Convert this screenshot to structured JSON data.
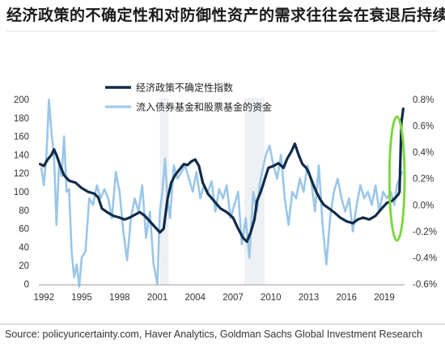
{
  "title": "经济政策的不确定性和对防御性资产的需求往往会在衰退后持续",
  "source": "Source: policyuncertainty.com, Haver Analytics, Goldman Sachs Global Investment Research",
  "colors": {
    "uncertainty_line": "#0f2b4a",
    "flows_line": "#9ac6e8",
    "highlight_ellipse": "#7fd640",
    "recession_band": "#eef0f3"
  },
  "chart_data": {
    "type": "line",
    "x_range": [
      1991.6,
      2020.6
    ],
    "x_ticks": [
      "1992",
      "1995",
      "1998",
      "2001",
      "2004",
      "2007",
      "2010",
      "2013",
      "2016",
      "2019"
    ],
    "x_tick_values": [
      1992,
      1995,
      1998,
      2001,
      2004,
      2007,
      2010,
      2013,
      2016,
      2019
    ],
    "y_left": {
      "range": [
        0,
        200
      ],
      "ticks": [
        "0",
        "20",
        "40",
        "60",
        "80",
        "100",
        "120",
        "140",
        "160",
        "180",
        "200"
      ]
    },
    "y_right": {
      "range": [
        -0.6,
        0.8
      ],
      "ticks": [
        "-0.6%",
        "-0.4%",
        "-0.2%",
        "0.0%",
        "0.2%",
        "0.4%",
        "0.6%",
        "0.8%"
      ]
    },
    "recession_periods": [
      [
        2001.2,
        2001.9
      ],
      [
        2007.9,
        2009.5
      ]
    ],
    "highlight": {
      "x": 2020.0,
      "y_center": 0.2,
      "x_half_width": 0.6,
      "y_half_height": 0.47
    },
    "series": [
      {
        "name": "经济政策不确定性指数",
        "axis": "left",
        "x": [
          1991.7,
          1992.0,
          1992.3,
          1992.6,
          1992.8,
          1993.0,
          1993.3,
          1993.6,
          1994.0,
          1994.5,
          1995.0,
          1995.5,
          1996.0,
          1996.3,
          1996.6,
          1997.0,
          1997.5,
          1998.0,
          1998.4,
          1998.8,
          1999.2,
          1999.6,
          2000.0,
          2000.4,
          2000.8,
          2001.2,
          2001.5,
          2001.8,
          2002.1,
          2002.4,
          2002.8,
          2003.1,
          2003.4,
          2003.7,
          2004.0,
          2004.3,
          2004.6,
          2005.0,
          2005.5,
          2006.0,
          2006.5,
          2007.0,
          2007.4,
          2007.8,
          2008.1,
          2008.4,
          2008.7,
          2008.9,
          2009.2,
          2009.5,
          2009.8,
          2010.2,
          2010.6,
          2011.0,
          2011.3,
          2011.6,
          2011.9,
          2012.2,
          2012.5,
          2012.8,
          2013.0,
          2013.3,
          2013.6,
          2013.9,
          2014.2,
          2014.6,
          2015.0,
          2015.5,
          2016.0,
          2016.5,
          2016.9,
          2017.3,
          2017.8,
          2018.3,
          2018.8,
          2019.2,
          2019.6,
          2019.9,
          2020.1,
          2020.2,
          2020.35,
          2020.5
        ],
        "values": [
          130,
          128,
          135,
          140,
          146,
          140,
          128,
          118,
          112,
          110,
          104,
          100,
          98,
          94,
          82,
          78,
          74,
          72,
          70,
          72,
          75,
          78,
          74,
          68,
          62,
          56,
          60,
          92,
          110,
          118,
          125,
          130,
          129,
          133,
          135,
          128,
          110,
          98,
          90,
          82,
          78,
          72,
          60,
          50,
          46,
          56,
          70,
          90,
          100,
          113,
          126,
          128,
          131,
          126,
          136,
          143,
          152,
          140,
          130,
          126,
          121,
          110,
          100,
          92,
          86,
          82,
          78,
          72,
          68,
          66,
          70,
          72,
          70,
          74,
          82,
          88,
          90,
          94,
          97,
          100,
          175,
          190
        ]
      },
      {
        "name": "流入债券基金和股票基金的资金",
        "axis": "right",
        "x": [
          1991.8,
          1992.0,
          1992.2,
          1992.4,
          1992.6,
          1992.8,
          1993.0,
          1993.2,
          1993.4,
          1993.6,
          1993.8,
          1994.0,
          1994.2,
          1994.4,
          1994.6,
          1994.8,
          1995.0,
          1995.3,
          1995.6,
          1995.9,
          1996.2,
          1996.5,
          1996.8,
          1997.1,
          1997.4,
          1997.7,
          1998.0,
          1998.3,
          1998.6,
          1998.9,
          1999.2,
          1999.5,
          1999.8,
          2000.1,
          2000.4,
          2000.7,
          2001.0,
          2001.2,
          2001.4,
          2001.6,
          2001.8,
          2002.0,
          2002.3,
          2002.6,
          2002.9,
          2003.2,
          2003.5,
          2003.8,
          2004.1,
          2004.4,
          2004.7,
          2005.0,
          2005.3,
          2005.6,
          2005.9,
          2006.2,
          2006.5,
          2006.8,
          2007.1,
          2007.4,
          2007.7,
          2008.0,
          2008.3,
          2008.6,
          2008.9,
          2009.1,
          2009.3,
          2009.6,
          2009.9,
          2010.2,
          2010.5,
          2010.8,
          2011.1,
          2011.4,
          2011.7,
          2012.0,
          2012.3,
          2012.6,
          2012.9,
          2013.2,
          2013.5,
          2013.8,
          2014.1,
          2014.4,
          2014.7,
          2015.0,
          2015.3,
          2015.6,
          2015.9,
          2016.2,
          2016.5,
          2016.8,
          2017.1,
          2017.4,
          2017.7,
          2018.0,
          2018.3,
          2018.6,
          2018.9,
          2019.2,
          2019.5,
          2019.8,
          2020.0,
          2020.2,
          2020.4
        ],
        "values": [
          0.28,
          0.15,
          0.38,
          0.8,
          0.55,
          0.38,
          -0.15,
          0.3,
          0.22,
          0.52,
          0.1,
          0.12,
          -0.35,
          -0.55,
          -0.45,
          -0.62,
          -0.4,
          -0.35,
          0.05,
          0.0,
          0.15,
          0.05,
          0.12,
          0.05,
          -0.1,
          0.25,
          0.1,
          -0.2,
          -0.42,
          -0.1,
          0.05,
          -0.05,
          0.15,
          -0.25,
          -0.05,
          -0.45,
          -0.6,
          -0.05,
          0.1,
          0.35,
          0.05,
          -0.1,
          0.3,
          0.2,
          0.25,
          0.3,
          0.2,
          0.1,
          0.25,
          0.05,
          0.15,
          0.1,
          0.18,
          -0.05,
          0.12,
          0.05,
          0.15,
          -0.1,
          0.0,
          0.1,
          -0.3,
          -0.1,
          -0.4,
          0.1,
          -0.05,
          0.15,
          0.25,
          0.38,
          0.45,
          0.3,
          0.2,
          0.38,
          0.05,
          -0.15,
          0.1,
          0.05,
          0.2,
          0.1,
          0.3,
          0.18,
          -0.05,
          0.3,
          -0.15,
          -0.45,
          -0.1,
          0.1,
          0.2,
          0.05,
          -0.05,
          0.05,
          -0.2,
          0.0,
          0.15,
          0.05,
          0.1,
          0.0,
          0.15,
          -0.05,
          0.1,
          0.05,
          0.1,
          0.0,
          0.15,
          0.2,
          0.25
        ]
      }
    ]
  }
}
